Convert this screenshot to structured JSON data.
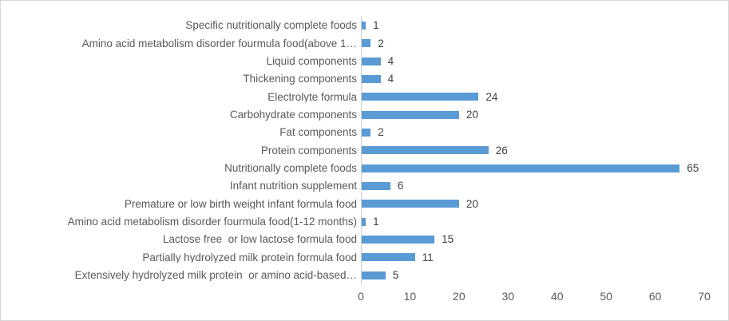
{
  "chart_data": {
    "type": "bar",
    "orientation": "horizontal",
    "title": "",
    "xlabel": "",
    "ylabel": "",
    "categories": [
      "Specific nutritionally complete foods",
      "Amino acid metabolism disorder fourmula food(above 1…",
      "Liquid components",
      "Thickening components",
      "Electrolyte formula",
      "Carbohydrate components",
      "Fat components",
      "Protein components",
      "Nutritionally complete foods",
      "Infant nutrition supplement",
      "Premature or low birth weight infant formula food",
      "Amino acid metabolism disorder fourmula food(1-12 months)",
      "Lactose free  or low lactose formula food",
      "Partially hydrolyzed milk protein formula food",
      "Extensively hydrolyzed milk protein  or amino acid-based…"
    ],
    "values": [
      1,
      2,
      4,
      4,
      24,
      20,
      2,
      26,
      65,
      6,
      20,
      1,
      15,
      11,
      5
    ],
    "data_labels": [
      1,
      2,
      4,
      4,
      24,
      20,
      2,
      26,
      65,
      6,
      20,
      1,
      15,
      11,
      5
    ],
    "xlim": [
      0,
      70
    ],
    "x_ticks": [
      0,
      10,
      20,
      30,
      40,
      50,
      60,
      70
    ],
    "grid": false,
    "legend": false,
    "colors": {
      "bar": "#5b9bd5",
      "category_label": "#595959",
      "value_label": "#404040",
      "axis_line": "#cfcfcf",
      "tick_label": "#595959",
      "background": "#ffffff",
      "border": "#d7d7d7"
    }
  }
}
